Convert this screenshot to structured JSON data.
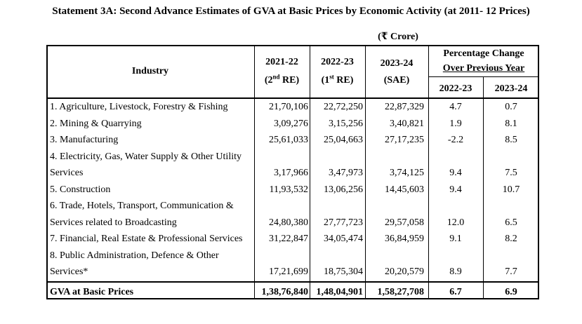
{
  "title": "Statement 3A: Second Advance Estimates of GVA at Basic Prices by Economic Activity (at 2011- 12 Prices)",
  "unit": "(₹ Crore)",
  "headers": {
    "industry": "Industry",
    "col1_year": "2021-22",
    "col1_sub_a": "(2",
    "col1_sup": "nd",
    "col1_sub_b": " RE)",
    "col2_year": "2022-23",
    "col2_sub_a": "(1",
    "col2_sup": "st",
    "col2_sub_b": " RE)",
    "col3_year": "2023-24",
    "col3_sub": "(SAE)",
    "pct_line1": "Percentage Change",
    "pct_line2": "Over Previous Year",
    "pct_col1": "2022-23",
    "pct_col2": "2023-24"
  },
  "rows": [
    {
      "label": [
        "1. Agriculture, Livestock, Forestry & Fishing"
      ],
      "v1": "21,70,106",
      "v2": "22,72,250",
      "v3": "22,87,329",
      "p1": "4.7",
      "p2": "0.7"
    },
    {
      "label": [
        "2. Mining & Quarrying"
      ],
      "v1": "3,09,276",
      "v2": "3,15,256",
      "v3": "3,40,821",
      "p1": "1.9",
      "p2": "8.1"
    },
    {
      "label": [
        "3. Manufacturing"
      ],
      "v1": "25,61,033",
      "v2": "25,04,663",
      "v3": "27,17,235",
      "p1": "-2.2",
      "p2": "8.5"
    },
    {
      "label": [
        "4. Electricity, Gas, Water Supply & Other Utility",
        "Services"
      ],
      "v1": "3,17,966",
      "v2": "3,47,973",
      "v3": "3,74,125",
      "p1": "9.4",
      "p2": "7.5"
    },
    {
      "label": [
        "5. Construction"
      ],
      "v1": "11,93,532",
      "v2": "13,06,256",
      "v3": "14,45,603",
      "p1": "9.4",
      "p2": "10.7"
    },
    {
      "label": [
        "6. Trade, Hotels, Transport, Communication &",
        "Services related to Broadcasting"
      ],
      "v1": "24,80,380",
      "v2": "27,77,723",
      "v3": "29,57,058",
      "p1": "12.0",
      "p2": "6.5"
    },
    {
      "label": [
        "7. Financial, Real Estate & Professional Services"
      ],
      "v1": "31,22,847",
      "v2": "34,05,474",
      "v3": "36,84,959",
      "p1": "9.1",
      "p2": "8.2"
    },
    {
      "label": [
        "8. Public Administration, Defence & Other",
        "Services*"
      ],
      "v1": "17,21,699",
      "v2": "18,75,304",
      "v3": "20,20,579",
      "p1": "8.9",
      "p2": "7.7"
    }
  ],
  "total": {
    "label": "GVA at Basic Prices",
    "v1": "1,38,76,840",
    "v2": "1,48,04,901",
    "v3": "1,58,27,708",
    "p1": "6.7",
    "p2": "6.9"
  }
}
